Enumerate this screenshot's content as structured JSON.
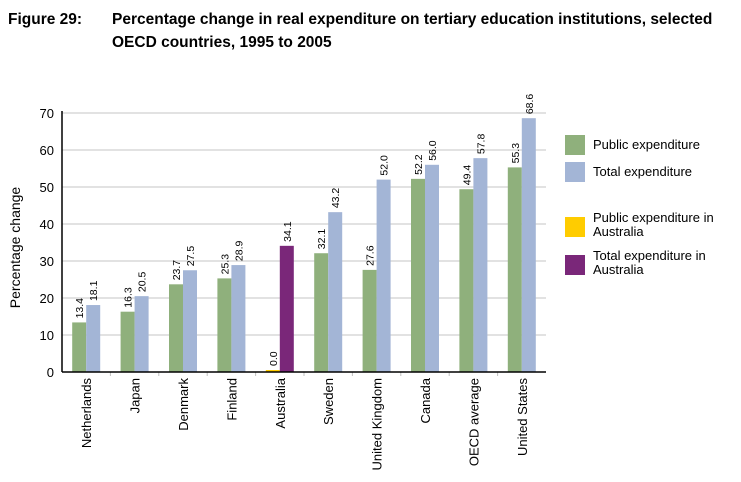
{
  "figure": {
    "number": "Figure 29:",
    "title": "Percentage change in real expenditure on tertiary education institutions, selected OECD countries, 1995 to 2005"
  },
  "colors": {
    "public": "#8fb07c",
    "total": "#a3b5d6",
    "public_australia": "#ffcc00",
    "total_australia": "#7a2779",
    "grid": "#d9d9d9",
    "axis": "#000000"
  },
  "chart_data": {
    "type": "bar",
    "title": "Percentage change in real expenditure on tertiary education institutions, selected OECD countries, 1995 to 2005",
    "xlabel": "",
    "ylabel": "Percentage change",
    "ylim": [
      0,
      70
    ],
    "yticks": [
      0,
      10,
      20,
      30,
      40,
      50,
      60,
      70
    ],
    "grid": true,
    "legend_position": "right",
    "categories": [
      "Netherlands",
      "Japan",
      "Denmark",
      "Finland",
      "Australia",
      "Sweden",
      "United Kingdom",
      "Canada",
      "OECD average",
      "United States"
    ],
    "series": [
      {
        "name": "Public expenditure",
        "values": [
          13.4,
          16.3,
          23.7,
          25.3,
          0.0,
          32.1,
          27.6,
          52.2,
          49.4,
          55.3
        ],
        "labels": [
          "13.4",
          "16.3",
          "23.7",
          "25.3",
          "0.0",
          "32.1",
          "27.6",
          "52.2",
          "49.4",
          "55.3"
        ]
      },
      {
        "name": "Total expenditure",
        "values": [
          18.1,
          20.5,
          27.5,
          28.9,
          34.1,
          43.2,
          52.0,
          56.0,
          57.8,
          68.6
        ],
        "labels": [
          "18.1",
          "20.5",
          "27.5",
          "28.9",
          "34.1",
          "43.2",
          "52.0",
          "56.0",
          "57.8",
          "68.6"
        ]
      }
    ],
    "highlight_category": "Australia",
    "legend": [
      {
        "label": "Public expenditure",
        "color_key": "public"
      },
      {
        "label": "Total expenditure",
        "color_key": "total"
      },
      {
        "label": "Public expenditure in Australia",
        "color_key": "public_australia"
      },
      {
        "label": "Total expenditure in Australia",
        "color_key": "total_australia"
      }
    ]
  }
}
